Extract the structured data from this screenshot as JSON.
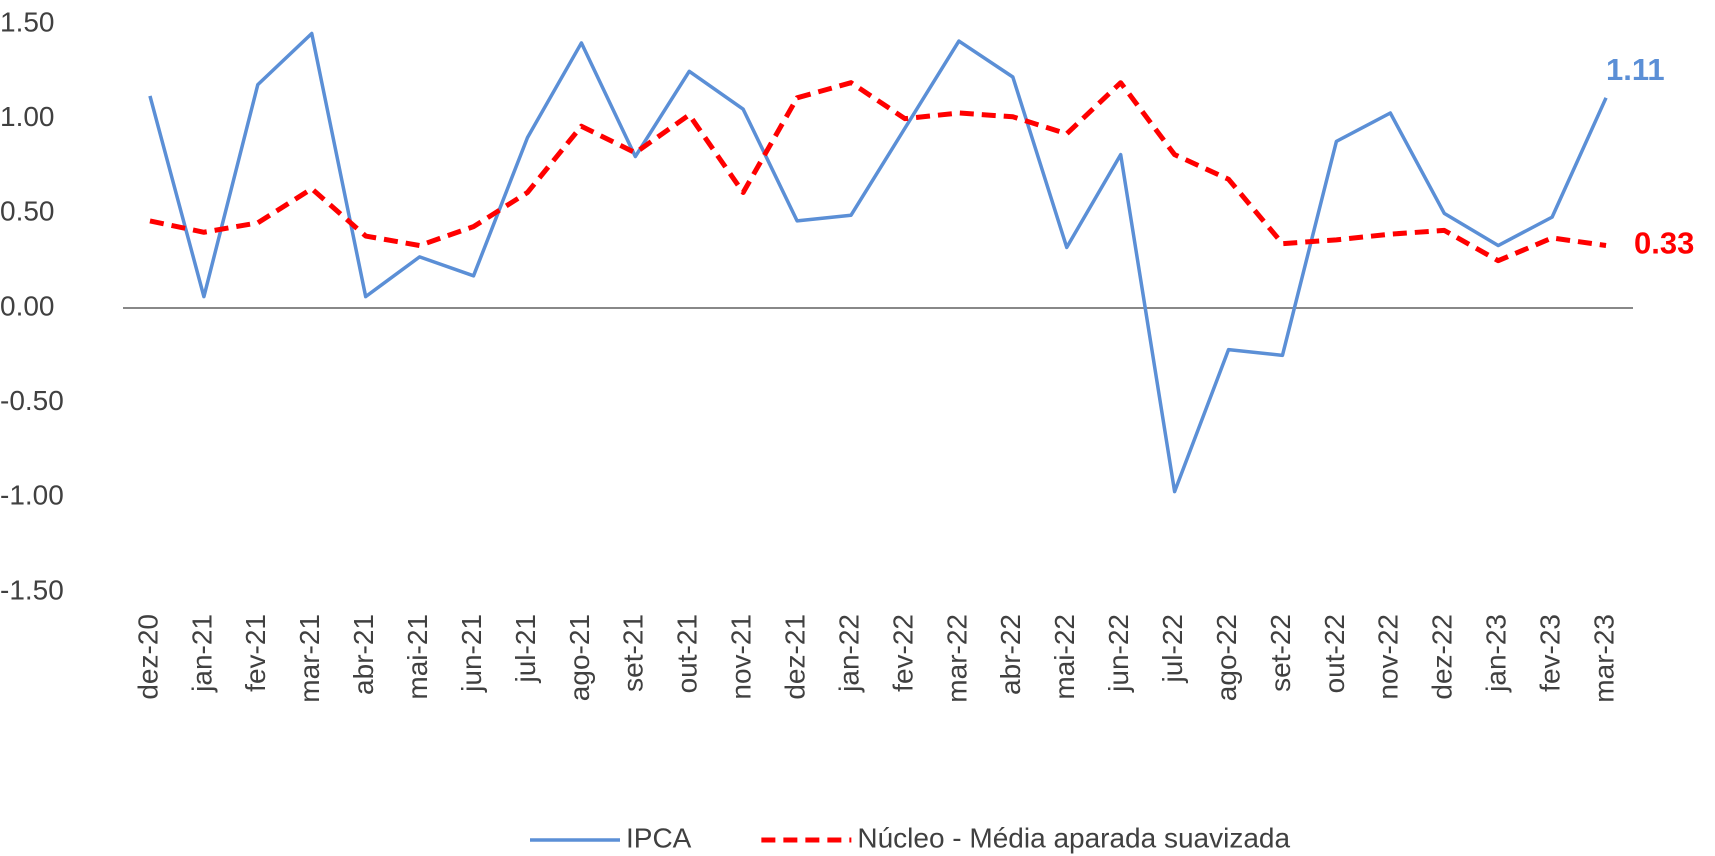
{
  "chart_data": {
    "type": "line",
    "categories": [
      "dez-20",
      "jan-21",
      "fev-21",
      "mar-21",
      "abr-21",
      "mai-21",
      "jun-21",
      "jul-21",
      "ago-21",
      "set-21",
      "out-21",
      "nov-21",
      "dez-21",
      "jan-22",
      "fev-22",
      "mar-22",
      "abr-22",
      "mai-22",
      "jun-22",
      "jul-22",
      "ago-22",
      "set-22",
      "out-22",
      "nov-22",
      "dez-22",
      "jan-23",
      "fev-23",
      "mar-23"
    ],
    "series": [
      {
        "name": "IPCA",
        "color": "#5b8fd6",
        "dash": false,
        "values": [
          1.12,
          0.06,
          1.18,
          1.45,
          0.06,
          0.27,
          0.17,
          0.9,
          1.4,
          0.8,
          1.25,
          1.05,
          0.46,
          0.49,
          0.95,
          1.41,
          1.22,
          0.32,
          0.81,
          -0.97,
          -0.22,
          -0.25,
          0.88,
          1.03,
          0.5,
          0.33,
          0.48,
          1.11
        ]
      },
      {
        "name": "Núcleo - Média aparada suavizada",
        "color": "#ff0000",
        "dash": true,
        "values": [
          0.46,
          0.4,
          0.45,
          0.63,
          0.38,
          0.33,
          0.43,
          0.61,
          0.96,
          0.82,
          1.02,
          0.61,
          1.11,
          1.19,
          1.0,
          1.03,
          1.01,
          0.92,
          1.19,
          0.81,
          0.68,
          0.34,
          0.36,
          0.39,
          0.41,
          0.25,
          0.37,
          0.33
        ]
      }
    ],
    "ylim": [
      -1.5,
      1.5
    ],
    "yticks": [
      {
        "value": 1.5,
        "label": "1.50"
      },
      {
        "value": 1,
        "label": "1.00"
      },
      {
        "value": 0.5,
        "label": "0.50"
      },
      {
        "value": 0,
        "label": "0.00"
      },
      {
        "value": -0.5,
        "label": "-0.50"
      },
      {
        "value": -1,
        "label": "-1.00"
      },
      {
        "value": -1.5,
        "label": "-1.50"
      }
    ],
    "grid": false,
    "legend": "bottom"
  }
}
